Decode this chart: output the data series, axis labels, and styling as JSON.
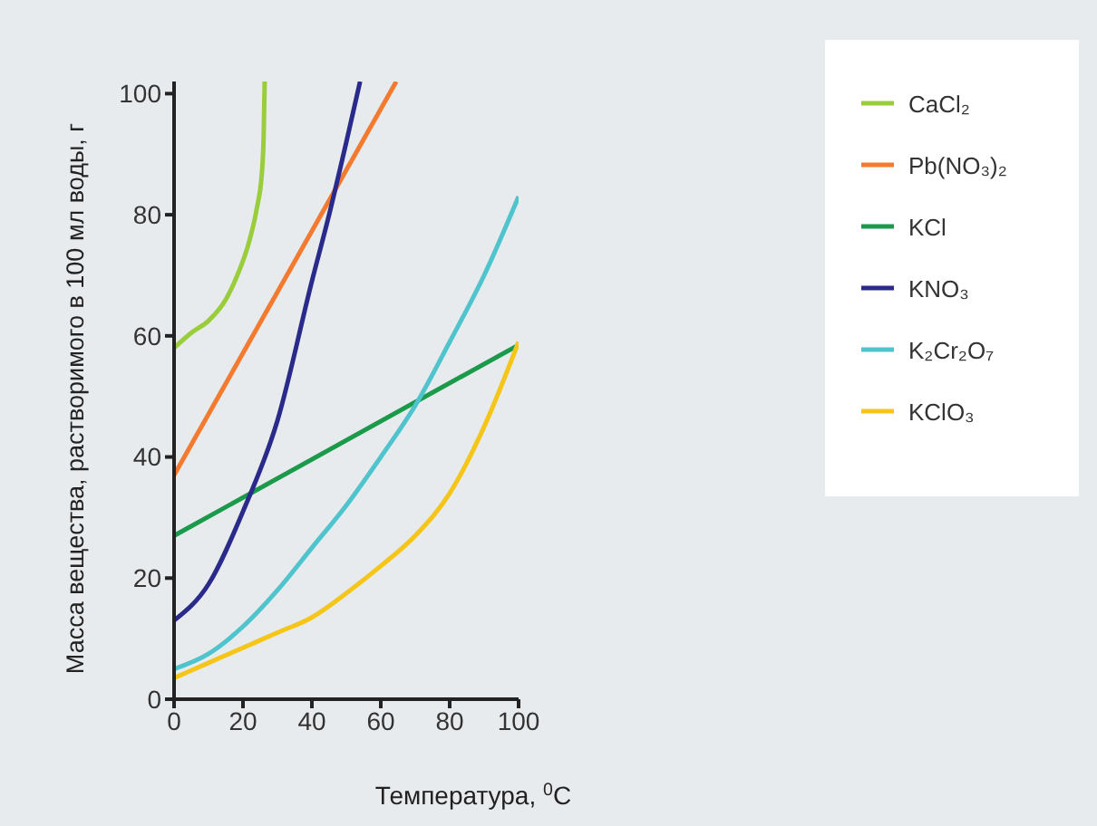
{
  "chart_data": {
    "type": "line",
    "xlabel": "Температура, $^{0}$C",
    "ylabel": "Масса вещества, растворимого в 100 мл воды, г",
    "xlim": [
      0,
      100
    ],
    "ylim": [
      0,
      102
    ],
    "xticks": [
      0,
      20,
      40,
      60,
      80,
      100
    ],
    "yticks": [
      0,
      20,
      40,
      60,
      80,
      100
    ],
    "grid": false,
    "legend": "right",
    "marker": "none",
    "line_style": "solid",
    "series": [
      {
        "name": "CaCl₂",
        "color": "#9acd3c",
        "x": [
          0,
          5,
          10,
          15,
          18,
          22,
          24,
          25.5,
          26,
          26.3
        ],
        "values": [
          58,
          60.5,
          62.5,
          66,
          69.5,
          76,
          81,
          87,
          93,
          102
        ]
      },
      {
        "name": "Pb(NO₃)₂",
        "color": "#f47a30",
        "x": [
          0,
          64.5
        ],
        "values": [
          37,
          102
        ]
      },
      {
        "name": "KCl",
        "color": "#1a9a4a",
        "x": [
          0,
          100
        ],
        "values": [
          27,
          58.5
        ]
      },
      {
        "name": "KNO₃",
        "color": "#2a2a8a",
        "x": [
          0,
          10,
          20,
          30,
          40,
          45,
          50,
          54
        ],
        "values": [
          13,
          19,
          31,
          46,
          69,
          80,
          92,
          102
        ]
      },
      {
        "name": "K₂Cr₂O₇",
        "color": "#4fc4cc",
        "x": [
          0,
          10,
          20,
          30,
          40,
          50,
          60,
          70,
          80,
          90,
          100
        ],
        "values": [
          5,
          7.5,
          12,
          18,
          25,
          32,
          40,
          48.5,
          59,
          70,
          83
        ]
      },
      {
        "name": "KClO₃",
        "color": "#f5c518",
        "x": [
          0,
          10,
          20,
          30,
          40,
          50,
          60,
          70,
          80,
          90,
          100
        ],
        "values": [
          3.5,
          6,
          8.5,
          11,
          13.5,
          17.5,
          22,
          27,
          34,
          45,
          59
        ]
      }
    ]
  }
}
